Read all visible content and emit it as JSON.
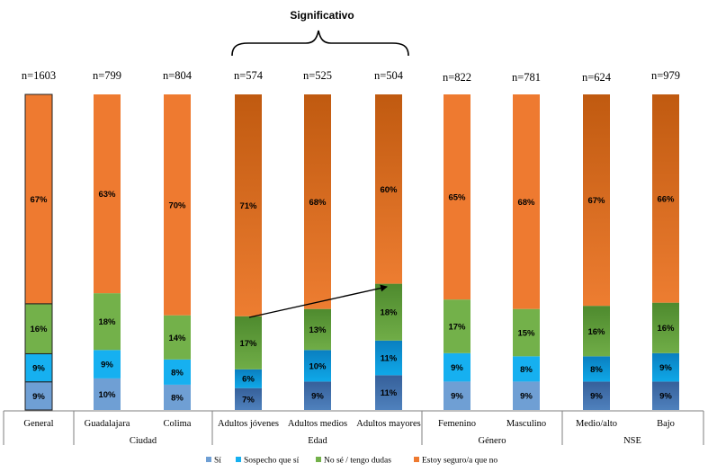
{
  "chart_data": {
    "type": "bar",
    "stacked": true,
    "categories": [
      "General",
      "Guadalajara",
      "Colima",
      "Adultos jóvenes",
      "Adultos medios",
      "Adultos mayores",
      "Femenino",
      "Masculino",
      "Medio/alto",
      "Bajo"
    ],
    "n_labels": [
      "n=1603",
      "n=799",
      "n=804",
      "n=574",
      "n=525",
      "n=504",
      "n=822",
      "n=781",
      "n=624",
      "n=979"
    ],
    "groups": [
      {
        "name": "",
        "categories": [
          "General"
        ]
      },
      {
        "name": "Ciudad",
        "categories": [
          "Guadalajara",
          "Colima"
        ]
      },
      {
        "name": "Edad",
        "categories": [
          "Adultos jóvenes",
          "Adultos medios",
          "Adultos mayores"
        ]
      },
      {
        "name": "Género",
        "categories": [
          "Femenino",
          "Masculino"
        ]
      },
      {
        "name": "NSE",
        "categories": [
          "Medio/alto",
          "Bajo"
        ]
      }
    ],
    "series": [
      {
        "name": "Sí",
        "color": "#4f81bd",
        "values": [
          9,
          10,
          8,
          7,
          9,
          11,
          9,
          9,
          9,
          9
        ],
        "labels": [
          "9%",
          "10%",
          "8%",
          "7%",
          "9%",
          "11%",
          "9%",
          "9%",
          "9%",
          "9%"
        ]
      },
      {
        "name": "Sospecho que sí",
        "color": "#0fa8e8",
        "values": [
          9,
          9,
          8,
          6,
          10,
          11,
          9,
          8,
          8,
          9
        ],
        "labels": [
          "9%",
          "9%",
          "8%",
          "6%",
          "10%",
          "11%",
          "9%",
          "8%",
          "8%",
          "9%"
        ]
      },
      {
        "name": "No sé / tengo dudas",
        "color": "#70ad47",
        "values": [
          16,
          18,
          14,
          17,
          13,
          18,
          17,
          15,
          16,
          16
        ],
        "labels": [
          "16%",
          "18%",
          "14%",
          "17%",
          "13%",
          "18%",
          "17%",
          "15%",
          "16%",
          "16%"
        ]
      },
      {
        "name": "Estoy seguro/a que no",
        "color": "#ed7d31",
        "values": [
          67,
          63,
          70,
          71,
          68,
          60,
          65,
          68,
          67,
          66
        ],
        "labels": [
          "67%",
          "63%",
          "70%",
          "71%",
          "68%",
          "60%",
          "65%",
          "68%",
          "67%",
          "66%"
        ]
      }
    ],
    "annotation": "Significativo",
    "title": "",
    "xlabel": "",
    "ylabel": "",
    "ylim": [
      0,
      100
    ],
    "legend_position": "bottom"
  }
}
